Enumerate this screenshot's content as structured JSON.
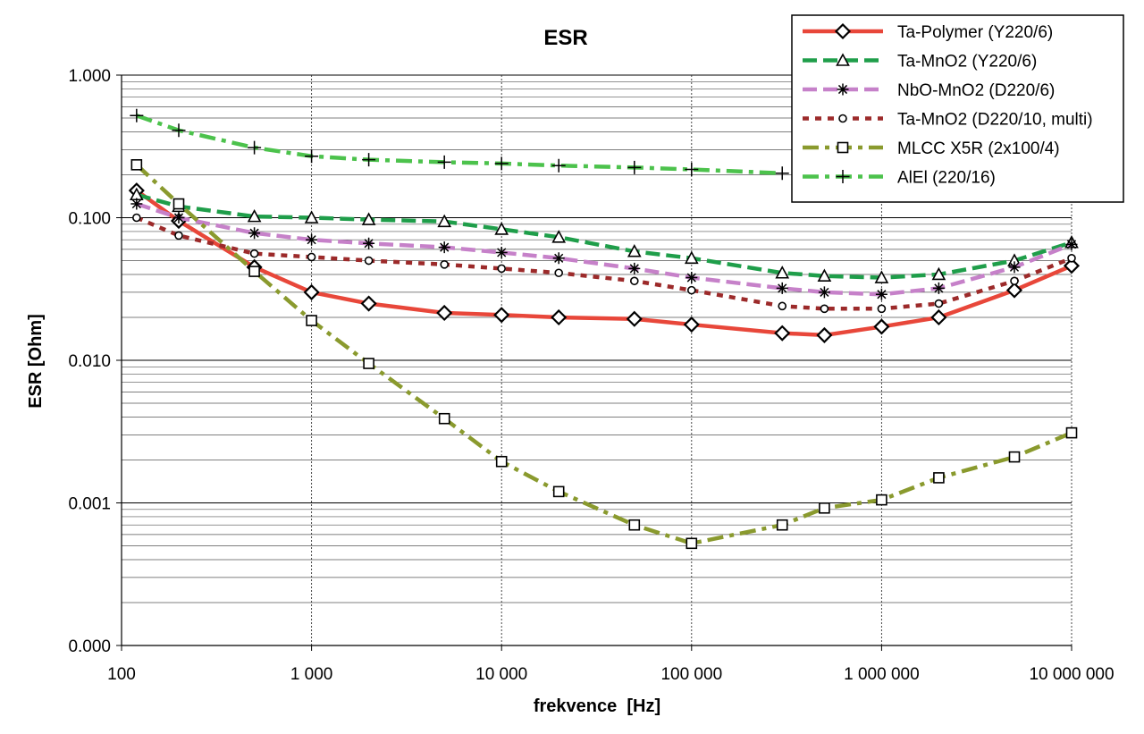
{
  "chart_data": {
    "type": "line",
    "title": "ESR",
    "xlabel": "frekvence  [Hz]",
    "ylabel": "ESR [Ohm]",
    "x_scale": "log",
    "y_scale": "log",
    "xlim": [
      100,
      10000000
    ],
    "ylim": [
      0.0001,
      1
    ],
    "x_ticks": [
      100,
      1000,
      10000,
      100000,
      1000000,
      10000000
    ],
    "x_tick_labels": [
      "100",
      "1 000",
      "10 000",
      "100 000",
      "1 000 000",
      "10 000 000"
    ],
    "y_ticks": [
      0.0001,
      0.001,
      0.01,
      0.1,
      1
    ],
    "y_tick_labels": [
      "0.000",
      "0.001",
      "0.010",
      "0.100",
      "1.000"
    ],
    "grid": true,
    "legend_position": "top-right",
    "series": [
      {
        "name": "Ta-Polymer (Y220/6)",
        "color": "#e8473a",
        "line_style": "solid",
        "marker": "diamond",
        "x": [
          120,
          200,
          500,
          1000,
          2000,
          5000,
          10000,
          20000,
          50000,
          100000,
          300000,
          500000,
          1000000,
          2000000,
          5000000,
          10000000
        ],
        "y": [
          0.155,
          0.095,
          0.045,
          0.03,
          0.025,
          0.0215,
          0.0208,
          0.02,
          0.0195,
          0.0178,
          0.0155,
          0.015,
          0.0172,
          0.02,
          0.031,
          0.046
        ]
      },
      {
        "name": "Ta-MnO2 (Y220/6)",
        "color": "#1f9e4a",
        "line_style": "dashed",
        "marker": "triangle",
        "x": [
          120,
          200,
          500,
          1000,
          2000,
          5000,
          10000,
          20000,
          50000,
          100000,
          300000,
          500000,
          1000000,
          2000000,
          5000000,
          10000000
        ],
        "y": [
          0.145,
          0.12,
          0.102,
          0.1,
          0.097,
          0.094,
          0.083,
          0.073,
          0.058,
          0.052,
          0.041,
          0.039,
          0.038,
          0.04,
          0.05,
          0.067
        ]
      },
      {
        "name": "NbO-MnO2 (D220/6)",
        "color": "#c681c9",
        "line_style": "dashed",
        "marker": "asterisk",
        "x": [
          120,
          200,
          500,
          1000,
          2000,
          5000,
          10000,
          20000,
          50000,
          100000,
          300000,
          500000,
          1000000,
          2000000,
          5000000,
          10000000
        ],
        "y": [
          0.125,
          0.1,
          0.078,
          0.07,
          0.066,
          0.062,
          0.057,
          0.052,
          0.044,
          0.038,
          0.032,
          0.03,
          0.029,
          0.032,
          0.045,
          0.065
        ]
      },
      {
        "name": "Ta-MnO2 (D220/10, multi)",
        "color": "#9c2a2a",
        "line_style": "dotted",
        "marker": "circle",
        "x": [
          120,
          200,
          500,
          1000,
          2000,
          5000,
          10000,
          20000,
          50000,
          100000,
          300000,
          500000,
          1000000,
          2000000,
          5000000,
          10000000
        ],
        "y": [
          0.1,
          0.075,
          0.056,
          0.053,
          0.05,
          0.047,
          0.044,
          0.041,
          0.036,
          0.031,
          0.024,
          0.023,
          0.023,
          0.025,
          0.036,
          0.052
        ]
      },
      {
        "name": "MLCC X5R (2x100/4)",
        "color": "#8a9a2e",
        "line_style": "dashdot",
        "marker": "square",
        "x": [
          120,
          200,
          500,
          1000,
          2000,
          5000,
          10000,
          20000,
          50000,
          100000,
          300000,
          500000,
          1000000,
          2000000,
          5000000,
          10000000
        ],
        "y": [
          0.235,
          0.125,
          0.042,
          0.019,
          0.0095,
          0.0039,
          0.00195,
          0.0012,
          0.0007,
          0.00052,
          0.0007,
          0.00092,
          0.00105,
          0.0015,
          0.0021,
          0.0031
        ]
      },
      {
        "name": "AlEl (220/16)",
        "color": "#4cc24c",
        "line_style": "dashdot",
        "marker": "plus",
        "x": [
          120,
          200,
          500,
          1000,
          2000,
          5000,
          10000,
          20000,
          50000,
          100000,
          300000
        ],
        "y": [
          0.52,
          0.41,
          0.31,
          0.27,
          0.255,
          0.245,
          0.24,
          0.232,
          0.225,
          0.218,
          0.205
        ]
      }
    ]
  }
}
